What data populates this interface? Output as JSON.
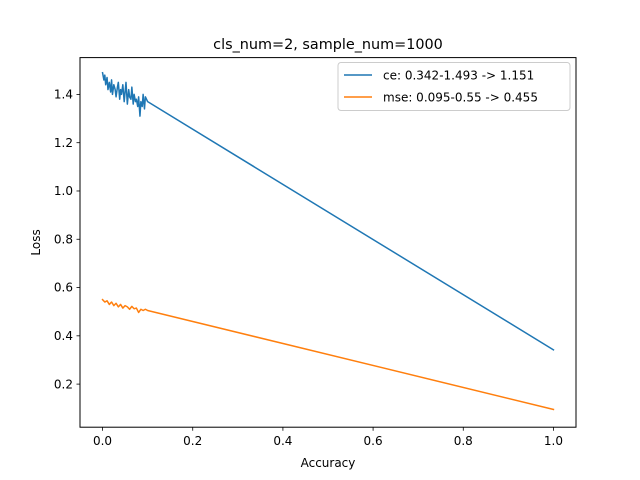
{
  "chart_data": {
    "type": "line",
    "title": "cls_num=2, sample_num=1000",
    "xlabel": "Accuracy",
    "ylabel": "Loss",
    "xlim": [
      -0.05,
      1.05
    ],
    "ylim": [
      0.0215,
      1.5525
    ],
    "xticks": [
      0.0,
      0.2,
      0.4,
      0.6,
      0.8,
      1.0
    ],
    "xtick_labels": [
      "0.0",
      "0.2",
      "0.4",
      "0.6",
      "0.8",
      "1.0"
    ],
    "yticks": [
      0.2,
      0.4,
      0.6,
      0.8,
      1.0,
      1.2,
      1.4
    ],
    "ytick_labels": [
      "0.2",
      "0.4",
      "0.6",
      "0.8",
      "1.0",
      "1.2",
      "1.4"
    ],
    "grid": false,
    "legend_position": "top-right",
    "series": [
      {
        "name": "ce: 0.342-1.493 -> 1.151",
        "color": "#1f77b4",
        "x": [
          0.0,
          0.003,
          0.005,
          0.007,
          0.01,
          0.012,
          0.015,
          0.018,
          0.02,
          0.022,
          0.025,
          0.028,
          0.03,
          0.033,
          0.035,
          0.038,
          0.04,
          0.042,
          0.045,
          0.048,
          0.05,
          0.052,
          0.055,
          0.058,
          0.06,
          0.063,
          0.065,
          0.068,
          0.07,
          0.073,
          0.075,
          0.078,
          0.08,
          0.083,
          0.085,
          0.088,
          0.09,
          0.093,
          0.095,
          0.1,
          1.0
        ],
        "y": [
          1.49,
          1.46,
          1.48,
          1.44,
          1.47,
          1.42,
          1.45,
          1.41,
          1.46,
          1.4,
          1.44,
          1.42,
          1.39,
          1.43,
          1.45,
          1.38,
          1.42,
          1.4,
          1.44,
          1.37,
          1.41,
          1.45,
          1.36,
          1.42,
          1.39,
          1.38,
          1.43,
          1.36,
          1.4,
          1.37,
          1.38,
          1.35,
          1.39,
          1.31,
          1.37,
          1.35,
          1.4,
          1.34,
          1.39,
          1.37,
          0.342
        ]
      },
      {
        "name": "mse: 0.095-0.55 -> 0.455",
        "color": "#ff7f0e",
        "x": [
          0.0,
          0.005,
          0.01,
          0.015,
          0.02,
          0.025,
          0.03,
          0.035,
          0.04,
          0.045,
          0.05,
          0.055,
          0.06,
          0.065,
          0.07,
          0.075,
          0.08,
          0.085,
          0.09,
          0.095,
          0.1,
          1.0
        ],
        "y": [
          0.55,
          0.54,
          0.545,
          0.53,
          0.54,
          0.525,
          0.535,
          0.52,
          0.53,
          0.515,
          0.525,
          0.52,
          0.51,
          0.522,
          0.512,
          0.515,
          0.497,
          0.51,
          0.505,
          0.51,
          0.505,
          0.095
        ]
      }
    ]
  }
}
